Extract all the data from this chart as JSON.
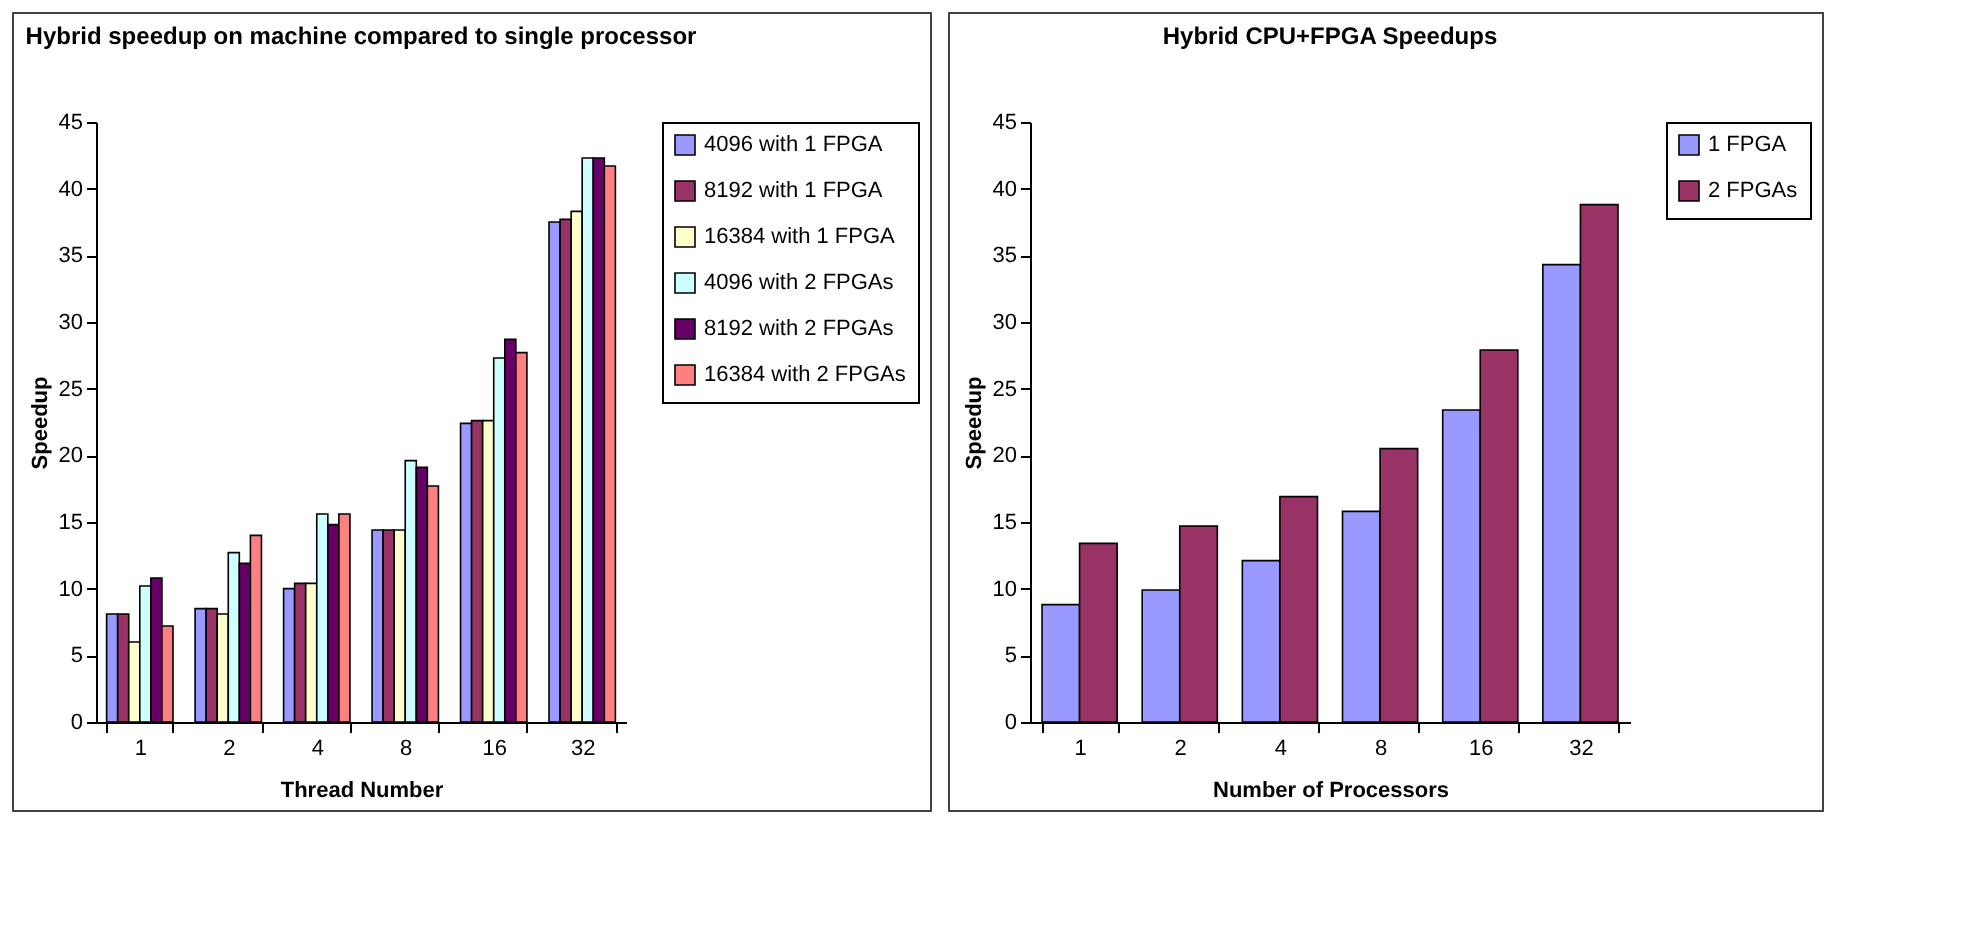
{
  "chart_data": [
    {
      "type": "bar",
      "title": "Hybrid speedup on machine compared to single processor",
      "xlabel": "Thread Number",
      "ylabel": "Speedup",
      "categories": [
        "1",
        "2",
        "4",
        "8",
        "16",
        "32"
      ],
      "ylim": [
        0,
        45
      ],
      "yticks": [
        0,
        5,
        10,
        15,
        20,
        25,
        30,
        35,
        40,
        45
      ],
      "legend": "right",
      "series": [
        {
          "name": "4096 with 1 FPGA",
          "color": "#9999ff",
          "values": [
            8.1,
            8.5,
            10.0,
            14.4,
            22.4,
            37.5
          ]
        },
        {
          "name": "8192 with 1 FPGA",
          "color": "#993366",
          "values": [
            8.1,
            8.5,
            10.4,
            14.4,
            22.6,
            37.7
          ]
        },
        {
          "name": "16384 with 1 FPGA",
          "color": "#ffffcc",
          "values": [
            6.0,
            8.1,
            10.4,
            14.4,
            22.6,
            38.3
          ]
        },
        {
          "name": "4096 with 2 FPGAs",
          "color": "#ccffff",
          "values": [
            10.2,
            12.7,
            15.6,
            19.6,
            27.3,
            42.3
          ]
        },
        {
          "name": "8192 with 2 FPGAs",
          "color": "#660066",
          "values": [
            10.8,
            11.9,
            14.8,
            19.1,
            28.7,
            42.3
          ]
        },
        {
          "name": "16384 with 2 FPGAs",
          "color": "#ff8080",
          "values": [
            7.2,
            14.0,
            15.6,
            17.7,
            27.7,
            41.7
          ]
        }
      ]
    },
    {
      "type": "bar",
      "title": "Hybrid CPU+FPGA Speedups",
      "xlabel": "Number of Processors",
      "ylabel": "Speedup",
      "categories": [
        "1",
        "2",
        "4",
        "8",
        "16",
        "32"
      ],
      "ylim": [
        0,
        45
      ],
      "yticks": [
        0,
        5,
        10,
        15,
        20,
        25,
        30,
        35,
        40,
        45
      ],
      "legend": "right",
      "series": [
        {
          "name": "1 FPGA",
          "color": "#9999ff",
          "values": [
            8.8,
            9.9,
            12.1,
            15.8,
            23.4,
            34.3
          ]
        },
        {
          "name": "2 FPGAs",
          "color": "#993366",
          "values": [
            13.4,
            14.7,
            16.9,
            20.5,
            27.9,
            38.8
          ]
        }
      ]
    }
  ]
}
